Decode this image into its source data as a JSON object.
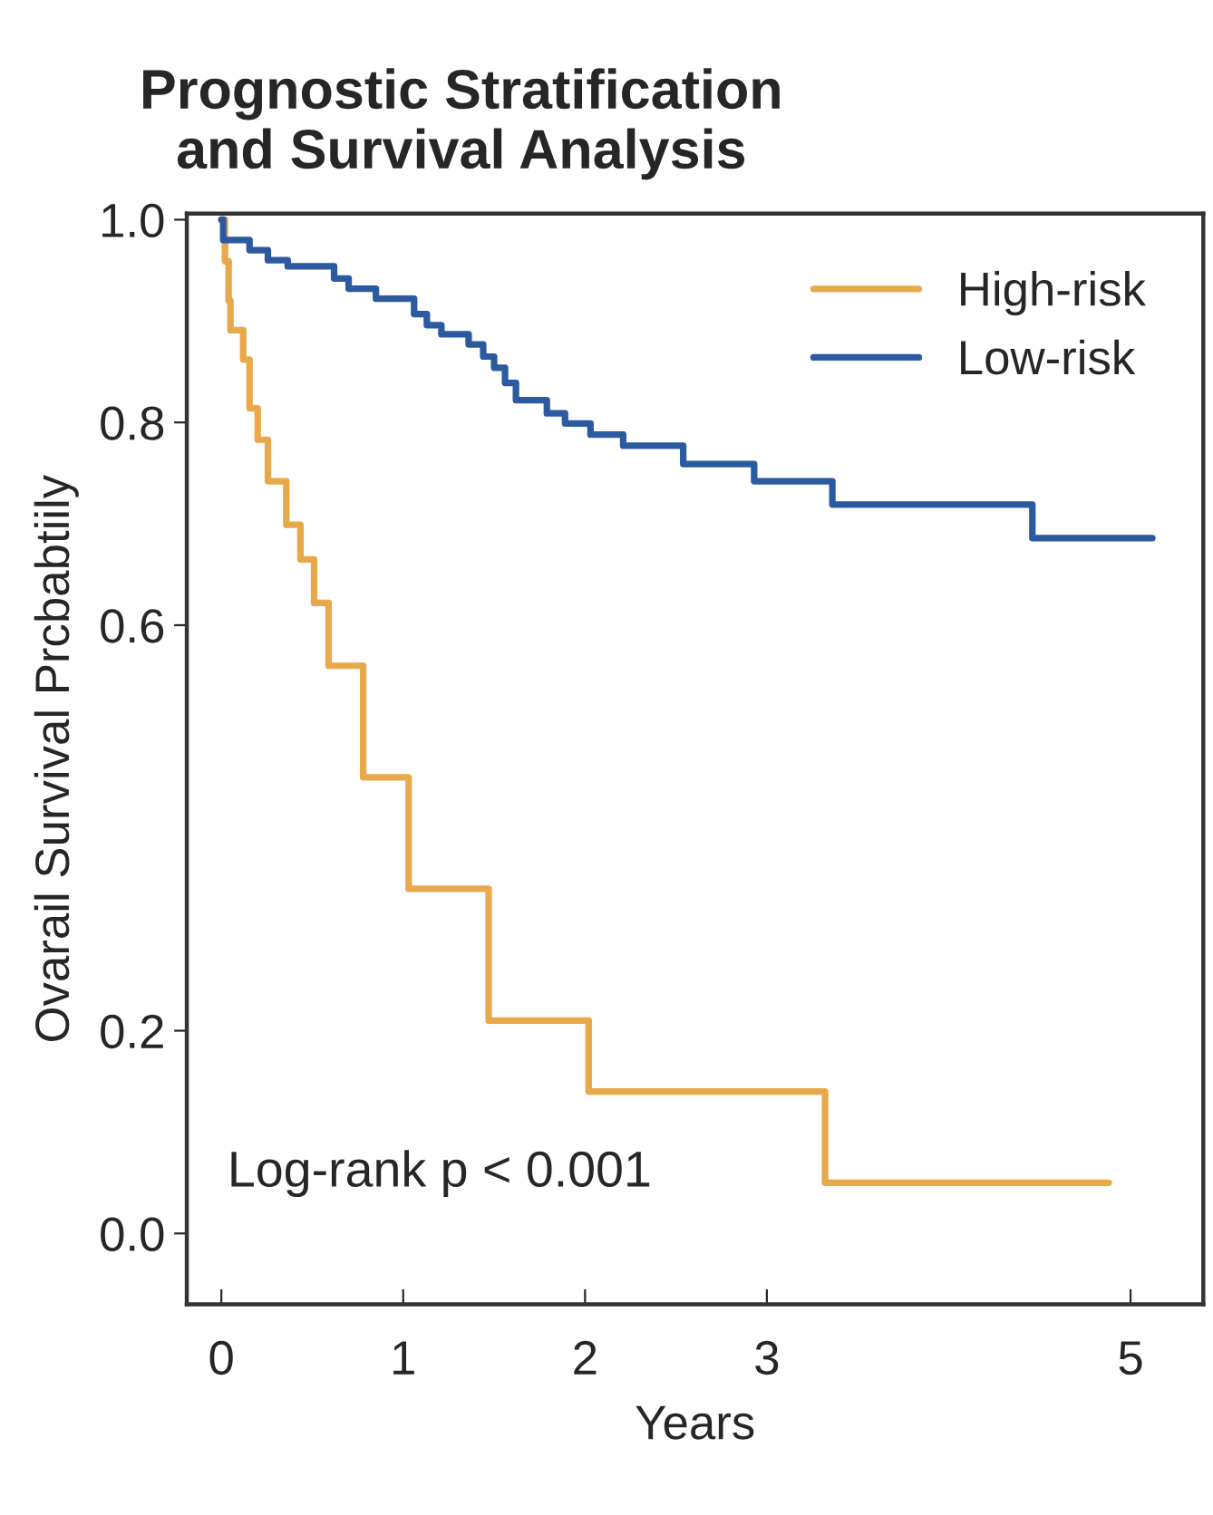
{
  "chart_data": {
    "type": "step",
    "title": "Prognostic Stratification\nand Survival Analysis",
    "xlabel": "Years",
    "ylabel": "Ovarail Survival Prcbabtiily",
    "annotations": [
      "Log-rank p < 0.001"
    ],
    "series": [
      {
        "name": "High-risk",
        "color": "#e8a94a",
        "x": [
          0,
          0.02,
          0.04,
          0.05,
          0.12,
          0.155,
          0.2,
          0.256,
          0.357,
          0.435,
          0.51,
          0.59,
          0.78,
          1.03,
          1.47,
          2.02,
          3.32,
          4.88
        ],
        "values": [
          1.0,
          0.959,
          0.92,
          0.891,
          0.862,
          0.814,
          0.783,
          0.742,
          0.699,
          0.665,
          0.622,
          0.56,
          0.45,
          0.34,
          0.21,
          0.14,
          0.05,
          0.05
        ]
      },
      {
        "name": "Low-risk",
        "color": "#2c5aa0",
        "x": [
          0,
          0.01,
          0.155,
          0.256,
          0.365,
          0.62,
          0.7,
          0.85,
          1.06,
          1.13,
          1.21,
          1.36,
          1.44,
          1.5,
          1.56,
          1.62,
          1.79,
          1.89,
          2.03,
          2.21,
          2.54,
          2.93,
          3.36,
          4.46,
          5.12
        ],
        "values": [
          1.0,
          0.98,
          0.97,
          0.96,
          0.954,
          0.942,
          0.932,
          0.922,
          0.907,
          0.896,
          0.887,
          0.877,
          0.865,
          0.854,
          0.839,
          0.822,
          0.809,
          0.799,
          0.788,
          0.777,
          0.759,
          0.742,
          0.719,
          0.686,
          0.686
        ]
      }
    ],
    "xlim": [
      -0.19,
      5.4
    ],
    "ylim": [
      -0.07,
      1.006
    ],
    "xticks": [
      0,
      1,
      2,
      3,
      5
    ],
    "yticks": [
      {
        "value": 0,
        "label": "0.0"
      },
      0.2,
      0.6,
      0.8,
      {
        "value": 1,
        "label": "1.0"
      }
    ],
    "legend": "top right",
    "grid": false,
    "line_style": "solid"
  }
}
